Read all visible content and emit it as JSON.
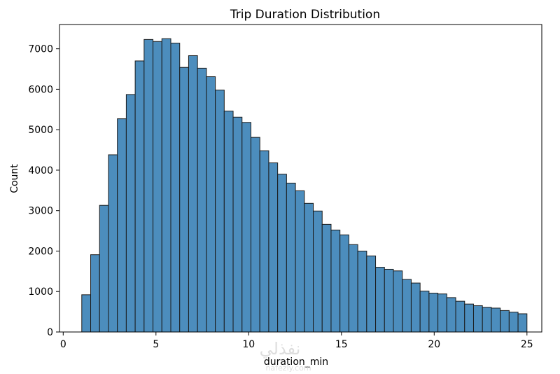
{
  "chart_data": {
    "type": "bar",
    "title": "Trip Duration Distribution",
    "xlabel": "duration_min",
    "ylabel": "Count",
    "xlim": [
      -0.2,
      25.8
    ],
    "ylim": [
      0,
      7600
    ],
    "xticks": [
      0,
      5,
      10,
      15,
      20,
      25
    ],
    "yticks": [
      0,
      1000,
      2000,
      3000,
      4000,
      5000,
      6000,
      7000
    ],
    "bin_start": 1,
    "bin_width": 0.48,
    "values": [
      920,
      1910,
      3130,
      4380,
      5270,
      5870,
      6700,
      7230,
      7180,
      7250,
      7140,
      6540,
      6830,
      6520,
      6310,
      5980,
      5460,
      5310,
      5180,
      4810,
      4480,
      4180,
      3900,
      3680,
      3490,
      3180,
      2990,
      2660,
      2520,
      2400,
      2160,
      2000,
      1880,
      1600,
      1550,
      1510,
      1300,
      1210,
      1010,
      960,
      940,
      850,
      760,
      690,
      650,
      610,
      590,
      530,
      490,
      450
    ],
    "bar_color": "#4c8dbd",
    "edge_color": "#1a1a1a",
    "grid": false
  },
  "watermark": {
    "text": "نفذلي",
    "subtext": "nafezly.com"
  }
}
